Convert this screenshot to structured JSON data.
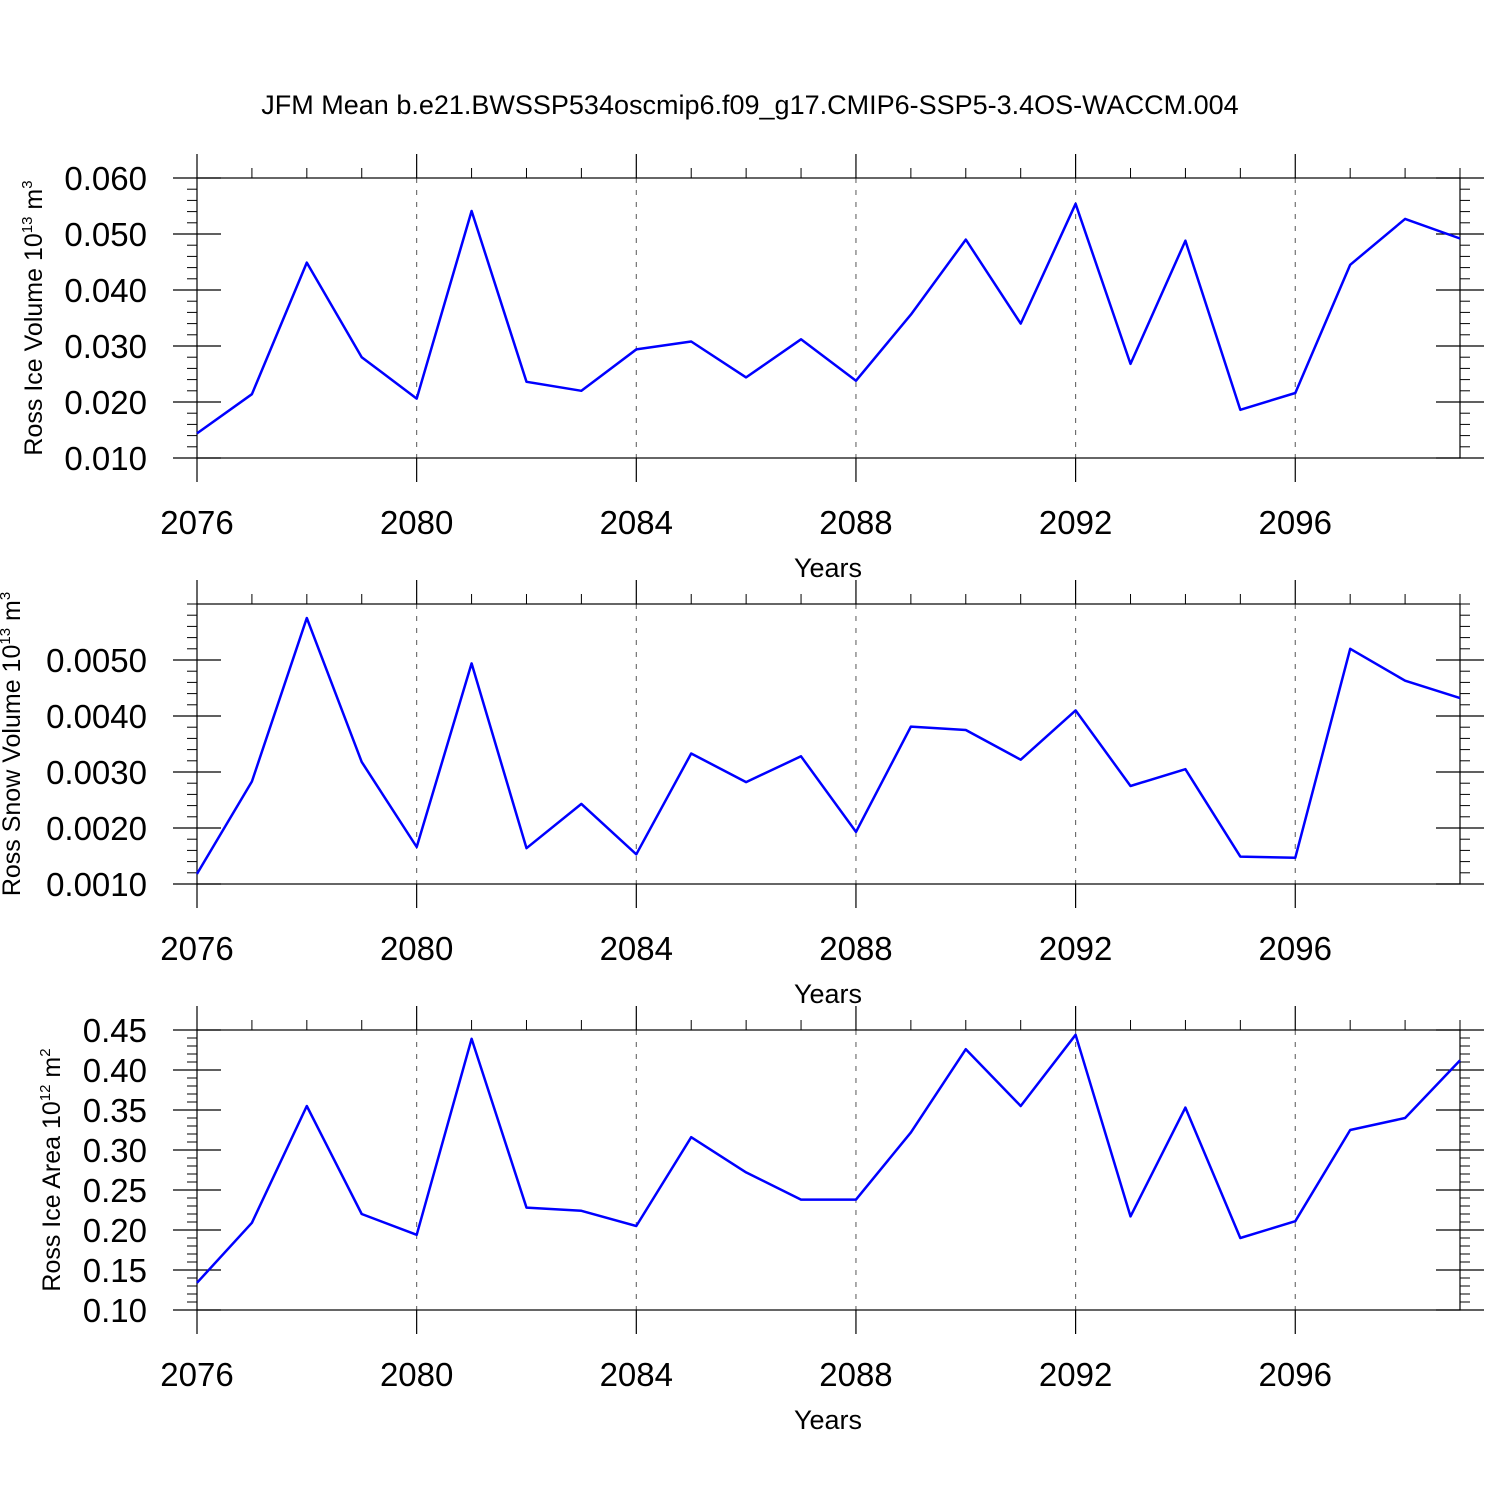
{
  "title": "JFM Mean b.e21.BWSSP534oscmip6.f09_g17.CMIP6-SSP5-3.4OS-WACCM.004",
  "line_color": "#0000ff",
  "chart_data": [
    {
      "type": "line",
      "ylabel": "Ross Ice Volume 10",
      "ylabel_exp": "13",
      "ylabel_unit": " m",
      "ylabel_unit_exp": "3",
      "xlabel": "Years",
      "x": [
        2076,
        2077,
        2078,
        2079,
        2080,
        2081,
        2082,
        2083,
        2084,
        2085,
        2086,
        2087,
        2088,
        2089,
        2090,
        2091,
        2092,
        2093,
        2094,
        2095,
        2096,
        2097,
        2098,
        2099
      ],
      "values": [
        0.0144,
        0.0214,
        0.0449,
        0.028,
        0.0206,
        0.0541,
        0.0236,
        0.022,
        0.0294,
        0.0308,
        0.0244,
        0.0312,
        0.0238,
        0.0356,
        0.049,
        0.034,
        0.0554,
        0.0268,
        0.0488,
        0.0186,
        0.0216,
        0.0445,
        0.0527,
        0.0492
      ],
      "xlim": [
        2076,
        2099
      ],
      "ylim": [
        0.01,
        0.06
      ],
      "xticks": [
        2076,
        2080,
        2084,
        2088,
        2092,
        2096
      ],
      "xtick_labels": [
        "2076",
        "2080",
        "2084",
        "2088",
        "2092",
        "2096"
      ],
      "yticks": [
        0.01,
        0.02,
        0.03,
        0.04,
        0.05,
        0.06
      ],
      "ytick_labels": [
        "0.010",
        "0.020",
        "0.030",
        "0.040",
        "0.050",
        "0.060"
      ],
      "grid": "vertical dashed at major x ticks"
    },
    {
      "type": "line",
      "ylabel": "Ross Snow Volume 10",
      "ylabel_exp": "13",
      "ylabel_unit": " m",
      "ylabel_unit_exp": "3",
      "xlabel": "Years",
      "x": [
        2076,
        2077,
        2078,
        2079,
        2080,
        2081,
        2082,
        2083,
        2084,
        2085,
        2086,
        2087,
        2088,
        2089,
        2090,
        2091,
        2092,
        2093,
        2094,
        2095,
        2096,
        2097,
        2098,
        2099
      ],
      "values": [
        0.00118,
        0.00283,
        0.00575,
        0.00318,
        0.00166,
        0.00494,
        0.00164,
        0.00243,
        0.00153,
        0.00333,
        0.00282,
        0.00328,
        0.00193,
        0.00381,
        0.00375,
        0.00322,
        0.0041,
        0.00275,
        0.00305,
        0.00149,
        0.00147,
        0.0052,
        0.00463,
        0.00432
      ],
      "xlim": [
        2076,
        2099
      ],
      "ylim": [
        0.001,
        0.006
      ],
      "xticks": [
        2076,
        2080,
        2084,
        2088,
        2092,
        2096
      ],
      "xtick_labels": [
        "2076",
        "2080",
        "2084",
        "2088",
        "2092",
        "2096"
      ],
      "yticks": [
        0.001,
        0.002,
        0.003,
        0.004,
        0.005
      ],
      "ytick_labels": [
        "0.0010",
        "0.0020",
        "0.0030",
        "0.0040",
        "0.0050"
      ],
      "grid": "vertical dashed at major x ticks"
    },
    {
      "type": "line",
      "ylabel": "Ross Ice Area 10",
      "ylabel_exp": "12",
      "ylabel_unit": " m",
      "ylabel_unit_exp": "2",
      "xlabel": "Years",
      "x": [
        2076,
        2077,
        2078,
        2079,
        2080,
        2081,
        2082,
        2083,
        2084,
        2085,
        2086,
        2087,
        2088,
        2089,
        2090,
        2091,
        2092,
        2093,
        2094,
        2095,
        2096,
        2097,
        2098,
        2099
      ],
      "values": [
        0.134,
        0.209,
        0.355,
        0.22,
        0.194,
        0.439,
        0.228,
        0.224,
        0.205,
        0.316,
        0.272,
        0.238,
        0.238,
        0.322,
        0.426,
        0.355,
        0.444,
        0.217,
        0.353,
        0.19,
        0.211,
        0.325,
        0.34,
        0.412
      ],
      "xlim": [
        2076,
        2099
      ],
      "ylim": [
        0.1,
        0.45
      ],
      "xticks": [
        2076,
        2080,
        2084,
        2088,
        2092,
        2096
      ],
      "xtick_labels": [
        "2076",
        "2080",
        "2084",
        "2088",
        "2092",
        "2096"
      ],
      "yticks": [
        0.1,
        0.15,
        0.2,
        0.25,
        0.3,
        0.35,
        0.4,
        0.45
      ],
      "ytick_labels": [
        "0.10",
        "0.15",
        "0.20",
        "0.25",
        "0.30",
        "0.35",
        "0.40",
        "0.45"
      ],
      "grid": "vertical dashed at major x ticks"
    }
  ]
}
